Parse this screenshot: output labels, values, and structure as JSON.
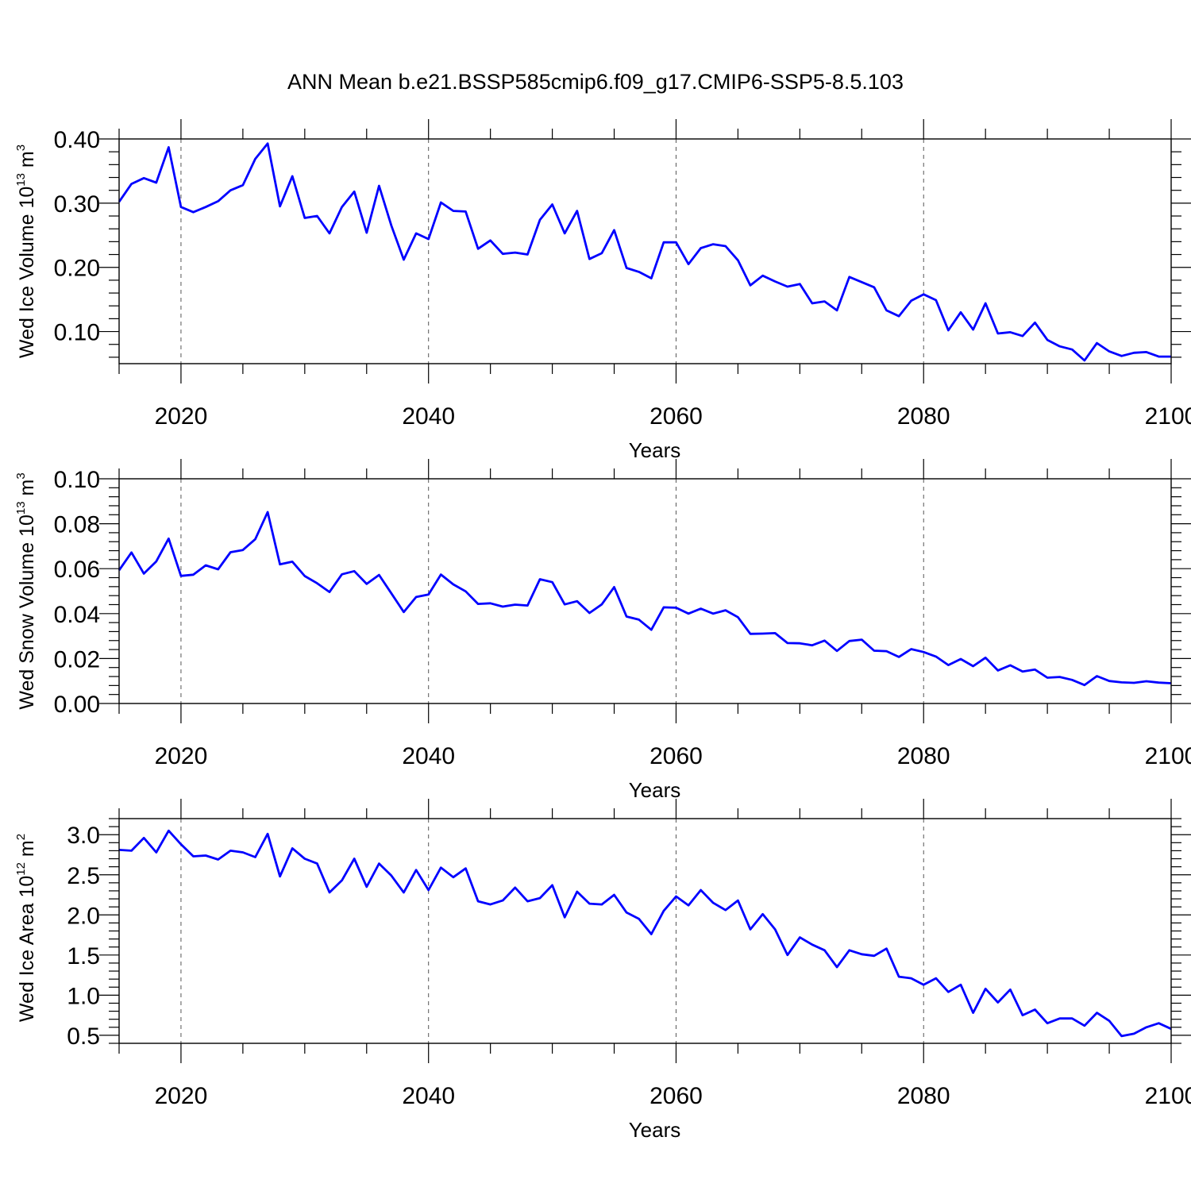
{
  "title": "ANN Mean b.e21.BSSP585cmip6.f09_g17.CMIP6-SSP5-8.5.103",
  "colors": {
    "line": "#0000ff",
    "axis": "#000000",
    "grid": "#555555"
  },
  "chart_data": [
    {
      "type": "line",
      "xlabel": "Years",
      "ylabel": {
        "text": "Wed Ice Volume 10",
        "exp": "13",
        "unit": " m",
        "unit_exp": "3"
      },
      "xlim": [
        2015,
        2100
      ],
      "ylim": [
        0.05,
        0.4
      ],
      "xticks": [
        "2020",
        "2040",
        "2060",
        "2080",
        "2100"
      ],
      "yticks": [
        "0.10",
        "0.20",
        "0.30",
        "0.40"
      ],
      "grid": "dashed vertical at major x ticks",
      "series": [
        {
          "x": [
            2015,
            2016,
            2017,
            2018,
            2019,
            2020,
            2021,
            2022,
            2023,
            2024,
            2025,
            2026,
            2027,
            2028,
            2029,
            2030,
            2031,
            2032,
            2033,
            2034,
            2035,
            2036,
            2037,
            2038,
            2039,
            2040,
            2041,
            2042,
            2043,
            2044,
            2045,
            2046,
            2047,
            2048,
            2049,
            2050,
            2051,
            2052,
            2053,
            2054,
            2055,
            2056,
            2057,
            2058,
            2059,
            2060,
            2061,
            2062,
            2063,
            2064,
            2065,
            2066,
            2067,
            2068,
            2069,
            2070,
            2071,
            2072,
            2073,
            2074,
            2075,
            2076,
            2077,
            2078,
            2079,
            2080,
            2081,
            2082,
            2083,
            2084,
            2085,
            2086,
            2087,
            2088,
            2089,
            2090,
            2091,
            2092,
            2093,
            2094,
            2095,
            2096,
            2097,
            2098,
            2099,
            2100
          ],
          "y": [
            0.302,
            0.33,
            0.339,
            0.332,
            0.387,
            0.294,
            0.286,
            0.294,
            0.303,
            0.32,
            0.328,
            0.369,
            0.393,
            0.295,
            0.342,
            0.277,
            0.28,
            0.253,
            0.294,
            0.318,
            0.254,
            0.327,
            0.265,
            0.212,
            0.253,
            0.244,
            0.301,
            0.288,
            0.287,
            0.229,
            0.242,
            0.221,
            0.223,
            0.22,
            0.274,
            0.298,
            0.253,
            0.288,
            0.213,
            0.222,
            0.258,
            0.199,
            0.193,
            0.183,
            0.239,
            0.239,
            0.205,
            0.23,
            0.236,
            0.233,
            0.211,
            0.172,
            0.187,
            0.178,
            0.17,
            0.174,
            0.144,
            0.147,
            0.133,
            0.185,
            0.177,
            0.169,
            0.133,
            0.124,
            0.148,
            0.158,
            0.149,
            0.102,
            0.13,
            0.103,
            0.144,
            0.097,
            0.099,
            0.093,
            0.114,
            0.087,
            0.077,
            0.072,
            0.055,
            0.082,
            0.069,
            0.062,
            0.067,
            0.068,
            0.061,
            0.061
          ]
        }
      ]
    },
    {
      "type": "line",
      "xlabel": "Years",
      "ylabel": {
        "text": "Wed Snow Volume 10",
        "exp": "13",
        "unit": " m",
        "unit_exp": "3"
      },
      "xlim": [
        2015,
        2100
      ],
      "ylim": [
        0.0,
        0.1
      ],
      "xticks": [
        "2020",
        "2040",
        "2060",
        "2080",
        "2100"
      ],
      "yticks": [
        "0.00",
        "0.02",
        "0.04",
        "0.06",
        "0.08",
        "0.10"
      ],
      "grid": "dashed vertical at major x ticks",
      "series": [
        {
          "x": [
            2015,
            2016,
            2017,
            2018,
            2019,
            2020,
            2021,
            2022,
            2023,
            2024,
            2025,
            2026,
            2027,
            2028,
            2029,
            2030,
            2031,
            2032,
            2033,
            2034,
            2035,
            2036,
            2037,
            2038,
            2039,
            2040,
            2041,
            2042,
            2043,
            2044,
            2045,
            2046,
            2047,
            2048,
            2049,
            2050,
            2051,
            2052,
            2053,
            2054,
            2055,
            2056,
            2057,
            2058,
            2059,
            2060,
            2061,
            2062,
            2063,
            2064,
            2065,
            2066,
            2067,
            2068,
            2069,
            2070,
            2071,
            2072,
            2073,
            2074,
            2075,
            2076,
            2077,
            2078,
            2079,
            2080,
            2081,
            2082,
            2083,
            2084,
            2085,
            2086,
            2087,
            2088,
            2089,
            2090,
            2091,
            2092,
            2093,
            2094,
            2095,
            2096,
            2097,
            2098,
            2099,
            2100
          ],
          "y": [
            0.0593,
            0.0672,
            0.0578,
            0.0632,
            0.0734,
            0.0568,
            0.0573,
            0.0615,
            0.0597,
            0.0673,
            0.0683,
            0.0731,
            0.0852,
            0.0619,
            0.0631,
            0.0567,
            0.0535,
            0.0496,
            0.0575,
            0.0589,
            0.0532,
            0.0572,
            0.049,
            0.0407,
            0.0474,
            0.0485,
            0.0574,
            0.053,
            0.0499,
            0.0443,
            0.0446,
            0.0431,
            0.044,
            0.0436,
            0.0553,
            0.054,
            0.0441,
            0.0455,
            0.0403,
            0.0441,
            0.0518,
            0.0387,
            0.0373,
            0.0328,
            0.0428,
            0.0426,
            0.04,
            0.0422,
            0.04,
            0.0415,
            0.0384,
            0.031,
            0.0311,
            0.0313,
            0.0269,
            0.0268,
            0.0259,
            0.028,
            0.0234,
            0.0278,
            0.0284,
            0.0235,
            0.0233,
            0.0207,
            0.0242,
            0.0229,
            0.0209,
            0.0171,
            0.0198,
            0.0166,
            0.0204,
            0.0147,
            0.017,
            0.0142,
            0.0151,
            0.0115,
            0.0118,
            0.0105,
            0.0082,
            0.0122,
            0.01,
            0.0094,
            0.0092,
            0.0099,
            0.0093,
            0.009
          ]
        }
      ]
    },
    {
      "type": "line",
      "xlabel": "Years",
      "ylabel": {
        "text": "Wed Ice Area 10",
        "exp": "12",
        "unit": " m",
        "unit_exp": "2"
      },
      "xlim": [
        2015,
        2100
      ],
      "ylim": [
        0.4,
        3.2
      ],
      "xticks": [
        "2020",
        "2040",
        "2060",
        "2080",
        "2100"
      ],
      "yticks": [
        "0.5",
        "1.0",
        "1.5",
        "2.0",
        "2.5",
        "3.0"
      ],
      "grid": "dashed vertical at major x ticks",
      "series": [
        {
          "x": [
            2015,
            2016,
            2017,
            2018,
            2019,
            2020,
            2021,
            2022,
            2023,
            2024,
            2025,
            2026,
            2027,
            2028,
            2029,
            2030,
            2031,
            2032,
            2033,
            2034,
            2035,
            2036,
            2037,
            2038,
            2039,
            2040,
            2041,
            2042,
            2043,
            2044,
            2045,
            2046,
            2047,
            2048,
            2049,
            2050,
            2051,
            2052,
            2053,
            2054,
            2055,
            2056,
            2057,
            2058,
            2059,
            2060,
            2061,
            2062,
            2063,
            2064,
            2065,
            2066,
            2067,
            2068,
            2069,
            2070,
            2071,
            2072,
            2073,
            2074,
            2075,
            2076,
            2077,
            2078,
            2079,
            2080,
            2081,
            2082,
            2083,
            2084,
            2085,
            2086,
            2087,
            2088,
            2089,
            2090,
            2091,
            2092,
            2093,
            2094,
            2095,
            2096,
            2097,
            2098,
            2099,
            2100
          ],
          "y": [
            2.81,
            2.8,
            2.96,
            2.78,
            3.05,
            2.88,
            2.73,
            2.74,
            2.69,
            2.8,
            2.78,
            2.72,
            3.01,
            2.48,
            2.83,
            2.7,
            2.64,
            2.28,
            2.43,
            2.7,
            2.35,
            2.64,
            2.49,
            2.28,
            2.56,
            2.31,
            2.59,
            2.47,
            2.58,
            2.17,
            2.13,
            2.18,
            2.34,
            2.17,
            2.21,
            2.37,
            1.97,
            2.29,
            2.14,
            2.13,
            2.25,
            2.03,
            1.95,
            1.76,
            2.05,
            2.23,
            2.12,
            2.31,
            2.15,
            2.06,
            2.18,
            1.82,
            2.01,
            1.82,
            1.5,
            1.72,
            1.63,
            1.56,
            1.35,
            1.56,
            1.51,
            1.49,
            1.58,
            1.23,
            1.21,
            1.13,
            1.21,
            1.04,
            1.13,
            0.78,
            1.08,
            0.91,
            1.07,
            0.75,
            0.82,
            0.65,
            0.71,
            0.71,
            0.62,
            0.78,
            0.68,
            0.49,
            0.52,
            0.6,
            0.65,
            0.58
          ]
        }
      ]
    }
  ]
}
